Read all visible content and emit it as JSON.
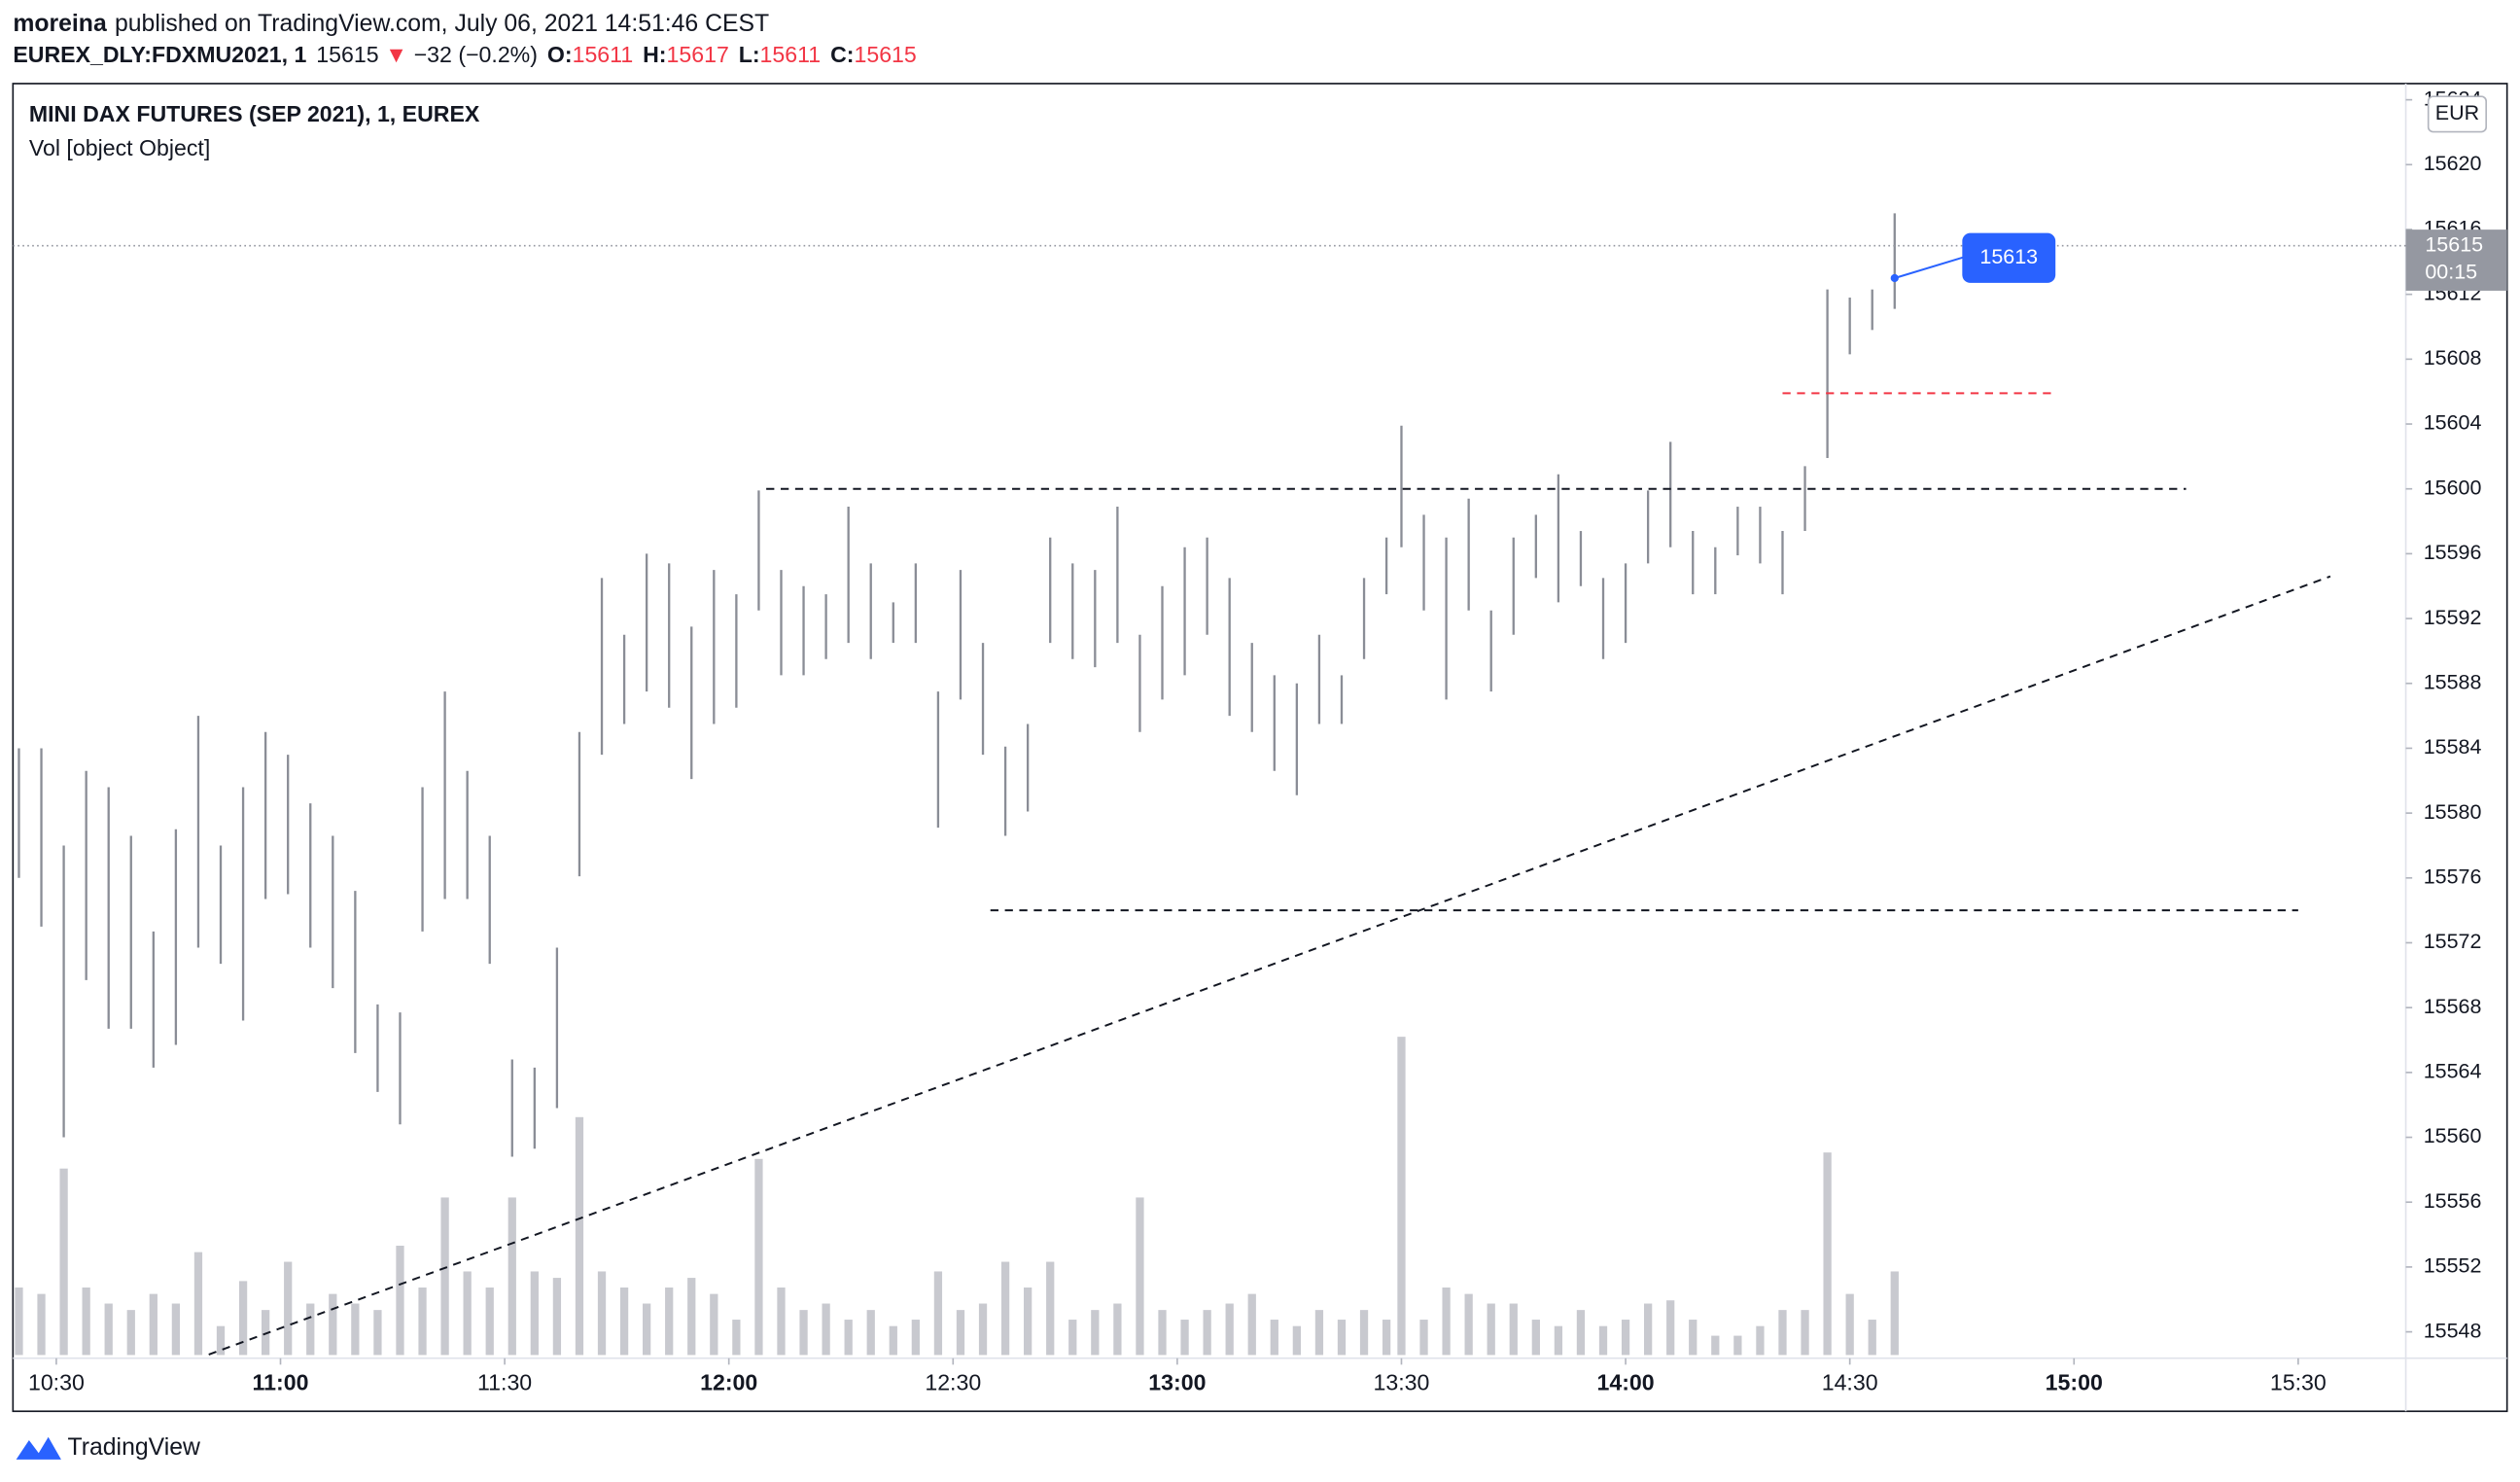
{
  "header": {
    "author": "moreina",
    "published": "published on TradingView.com, July 06, 2021 14:51:46 CEST",
    "symbol": "EUREX_DLY:FDXMU2021, 1",
    "last": 15615,
    "change_arrow": "▼",
    "change": "−32 (−0.2%)",
    "ohlc": [
      {
        "label": "O:",
        "value": 15611
      },
      {
        "label": "H:",
        "value": 15617
      },
      {
        "label": "L:",
        "value": 15611
      },
      {
        "label": "C:",
        "value": 15615
      }
    ]
  },
  "chart_data": {
    "type": "ohlc",
    "title": "MINI DAX FUTURES (SEP 2021), 1, EUREX",
    "subtitle": "Vol [object Object]",
    "currency": "EUR",
    "x": [
      625,
      628,
      631,
      634,
      637,
      640,
      643,
      646,
      649,
      652,
      655,
      658,
      661,
      664,
      667,
      670,
      673,
      676,
      679,
      682,
      685,
      688,
      691,
      694,
      697,
      700,
      703,
      706,
      709,
      712,
      715,
      718,
      721,
      724,
      727,
      730,
      733,
      736,
      739,
      742,
      745,
      748,
      751,
      754,
      757,
      760,
      763,
      766,
      769,
      772,
      775,
      778,
      781,
      784,
      787,
      790,
      793,
      796,
      799,
      802,
      805,
      808,
      810,
      813,
      816,
      819,
      822,
      825,
      828,
      831,
      834,
      837,
      840,
      843,
      846,
      849,
      852,
      855,
      858,
      861,
      864,
      867,
      870,
      873,
      876
    ],
    "high": [
      15584,
      15584,
      15578,
      15582.6,
      15581.6,
      15578.6,
      15572.7,
      15579,
      15586,
      15578,
      15581.6,
      15585,
      15583.6,
      15580.6,
      15578.6,
      15575.2,
      15568.2,
      15567.7,
      15581.6,
      15587.5,
      15582.6,
      15578.6,
      15564.8,
      15564.3,
      15571.7,
      15585,
      15594.5,
      15591,
      15596,
      15595.4,
      15591.5,
      15595,
      15593.5,
      15599.9,
      15595,
      15594,
      15593.5,
      15598.9,
      15595.4,
      15593,
      15595.4,
      15587.5,
      15595,
      15590.5,
      15584.1,
      15585.5,
      15597,
      15595.4,
      15595,
      15598.9,
      15591,
      15594,
      15596.4,
      15597,
      15594.5,
      15590.5,
      15588.5,
      15588,
      15591,
      15588.5,
      15594.5,
      15597,
      15603.9,
      15598.4,
      15597,
      15599.4,
      15592.5,
      15597,
      15598.4,
      15600.9,
      15597.4,
      15594.5,
      15595.4,
      15599.9,
      15602.9,
      15597.4,
      15596.4,
      15598.9,
      15598.9,
      15597.4,
      15601.4,
      15612.3,
      15611.8,
      15612.3,
      15617
    ],
    "low": [
      15576,
      15573,
      15560,
      15569.7,
      15566.7,
      15566.7,
      15564.3,
      15565.7,
      15571.7,
      15570.7,
      15567.2,
      15574.7,
      15575,
      15571.7,
      15569.2,
      15565.2,
      15562.8,
      15560.8,
      15572.7,
      15574.7,
      15574.7,
      15570.7,
      15558.8,
      15559.3,
      15561.8,
      15576.1,
      15583.6,
      15585.5,
      15587.5,
      15586.5,
      15582.1,
      15585.5,
      15586.5,
      15592.5,
      15588.5,
      15588.5,
      15589.5,
      15590.5,
      15589.5,
      15590.5,
      15590.5,
      15579.1,
      15587,
      15583.6,
      15578.6,
      15580.1,
      15590.5,
      15589.5,
      15589,
      15590.5,
      15585,
      15587,
      15588.5,
      15591,
      15586,
      15585,
      15582.6,
      15581.1,
      15585.5,
      15585.5,
      15589.5,
      15593.5,
      15596.4,
      15592.5,
      15587,
      15592.5,
      15587.5,
      15591,
      15594.5,
      15593,
      15594,
      15589.5,
      15590.5,
      15595.4,
      15596.4,
      15593.5,
      15593.5,
      15595.9,
      15595.4,
      15593.5,
      15597.4,
      15601.9,
      15608.3,
      15609.8,
      15611.1
    ],
    "volume": [
      21,
      19,
      58,
      21,
      16,
      14,
      19,
      16,
      32,
      9,
      23,
      14,
      29,
      16,
      19,
      16,
      14,
      34,
      21,
      49,
      26,
      21,
      49,
      26,
      24,
      74,
      26,
      21,
      16,
      21,
      24,
      19,
      11,
      61,
      21,
      14,
      16,
      11,
      14,
      9,
      11,
      26,
      14,
      16,
      29,
      21,
      29,
      11,
      14,
      16,
      49,
      14,
      11,
      14,
      16,
      19,
      11,
      9,
      14,
      11,
      14,
      11,
      99,
      11,
      21,
      19,
      16,
      16,
      11,
      9,
      14,
      9,
      11,
      16,
      17,
      11,
      6,
      6,
      9,
      14,
      14,
      63,
      19,
      11,
      26
    ],
    "volume_ylim": [
      0,
      100
    ],
    "bar_color": "#8a8d96",
    "volume_color": "#c8c9cf",
    "xlim": [
      624.2,
      944.4
    ],
    "xticks": [
      {
        "value": 630,
        "label": "10:30"
      },
      {
        "value": 660,
        "label": "11:00"
      },
      {
        "value": 690,
        "label": "11:30"
      },
      {
        "value": 720,
        "label": "12:00"
      },
      {
        "value": 750,
        "label": "12:30"
      },
      {
        "value": 780,
        "label": "13:00"
      },
      {
        "value": 810,
        "label": "13:30"
      },
      {
        "value": 840,
        "label": "14:00"
      },
      {
        "value": 870,
        "label": "14:30"
      },
      {
        "value": 900,
        "label": "15:00"
      },
      {
        "value": 930,
        "label": "15:30"
      }
    ],
    "ylim": [
      15543.1,
      15625
    ],
    "yticks": [
      15548,
      15552,
      15556,
      15560,
      15564,
      15568,
      15572,
      15576,
      15580,
      15584,
      15588,
      15592,
      15596,
      15600,
      15604,
      15608,
      15612,
      15616,
      15620,
      15624
    ],
    "last_price": 15615,
    "countdown": "00:15",
    "horizontal_lines": [
      {
        "y": 15600,
        "x": [
          725,
          915
        ],
        "color": "#131722"
      },
      {
        "y": 15574,
        "x": [
          755,
          930
        ],
        "color": "#131722"
      },
      {
        "y": 15605.9,
        "x": [
          861,
          897
        ],
        "color": "#f23645"
      }
    ],
    "trend_line": {
      "x": [
        650.4,
        934.3
      ],
      "y": [
        15546.6,
        15594.6
      ],
      "color": "#131722"
    },
    "annotation": {
      "label": "15613",
      "x": 876,
      "y": 15613,
      "color": "#2962ff"
    }
  },
  "footer": {
    "brand": "TradingView"
  }
}
